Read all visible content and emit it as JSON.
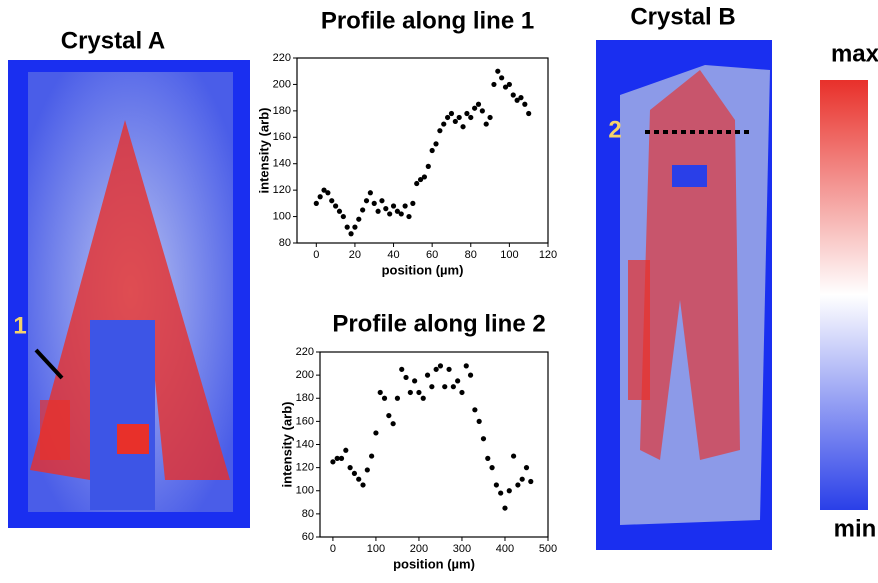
{
  "chart_data": [
    {
      "type": "scatter",
      "title": "Profile along line 1",
      "x_label": "position (µm)",
      "y_label": "intensity (arb)",
      "color": "#000000",
      "x": [
        0,
        2,
        4,
        6,
        8,
        10,
        12,
        14,
        16,
        18,
        20,
        22,
        24,
        26,
        28,
        30,
        32,
        34,
        36,
        38,
        40,
        42,
        44,
        46,
        48,
        50,
        52,
        54,
        56,
        58,
        60,
        62,
        64,
        66,
        68,
        70,
        72,
        74,
        76,
        78,
        80,
        82,
        84,
        86,
        88,
        90,
        92,
        94,
        96,
        98,
        100,
        102,
        104,
        106,
        108,
        110
      ],
      "values": [
        110,
        115,
        120,
        118,
        112,
        108,
        104,
        100,
        92,
        87,
        92,
        98,
        105,
        112,
        118,
        110,
        104,
        112,
        106,
        102,
        108,
        104,
        102,
        108,
        100,
        110,
        125,
        128,
        130,
        138,
        150,
        155,
        165,
        170,
        175,
        178,
        172,
        175,
        168,
        178,
        175,
        182,
        185,
        180,
        170,
        175,
        200,
        210,
        205,
        198,
        200,
        192,
        188,
        190,
        185,
        178
      ],
      "xlim": [
        -10,
        120
      ],
      "xticks": [
        0,
        20,
        40,
        60,
        80,
        100,
        120
      ],
      "ylim": [
        80,
        220
      ],
      "yticks": [
        80,
        100,
        120,
        140,
        160,
        180,
        200,
        220
      ]
    },
    {
      "type": "scatter",
      "title": "Profile along line 2",
      "x_label": "position (µm)",
      "y_label": "intensity (arb)",
      "color": "#000000",
      "x": [
        0,
        10,
        20,
        30,
        40,
        50,
        60,
        70,
        80,
        90,
        100,
        110,
        120,
        130,
        140,
        150,
        160,
        170,
        180,
        190,
        200,
        210,
        220,
        230,
        240,
        250,
        260,
        270,
        280,
        290,
        300,
        310,
        320,
        330,
        340,
        350,
        360,
        370,
        380,
        390,
        400,
        410,
        420,
        430,
        440,
        450,
        460
      ],
      "values": [
        125,
        128,
        128,
        135,
        120,
        115,
        110,
        105,
        118,
        130,
        150,
        185,
        180,
        165,
        158,
        180,
        205,
        198,
        185,
        195,
        185,
        180,
        200,
        190,
        205,
        208,
        190,
        205,
        190,
        195,
        185,
        208,
        200,
        170,
        160,
        145,
        128,
        120,
        105,
        98,
        85,
        100,
        130,
        105,
        110,
        120,
        108
      ],
      "xlim": [
        -30,
        500
      ],
      "xticks": [
        0,
        100,
        200,
        300,
        400,
        500
      ],
      "ylim": [
        60,
        220
      ],
      "yticks": [
        60,
        80,
        100,
        120,
        140,
        160,
        180,
        200,
        220
      ]
    }
  ],
  "images": {
    "crystal_a": "Crystal A",
    "crystal_b": "Crystal B",
    "line_1": "1",
    "line_2": "2",
    "max": "max",
    "min": "min"
  }
}
